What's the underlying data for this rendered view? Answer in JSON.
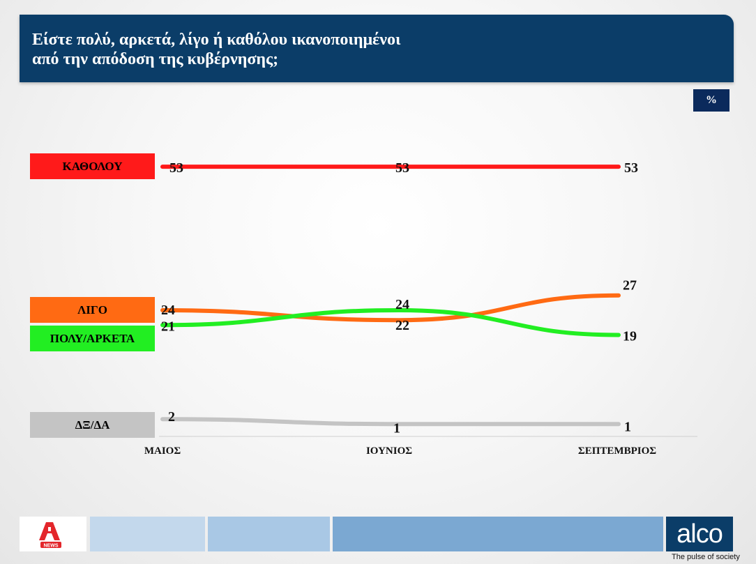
{
  "header": {
    "line1": "Είστε πολύ, αρκετά, λίγο ή καθόλου ικανοποιημένοι",
    "line2": "από την απόδοση της κυβέρνησης;"
  },
  "unit_label": "%",
  "footer": {
    "alpha_logo_text": "NEWS",
    "brand": "alco",
    "tagline": "The pulse of society"
  },
  "colors": {
    "header_bg": "#0b3d68",
    "katholou": "#ff1a1a",
    "ligo": "#ff6a13",
    "poly_arketa": "#22ee22",
    "dxda": "#c4c4c4"
  },
  "chart_data": {
    "type": "line",
    "categories": [
      "ΜΑΙΟΣ",
      "ΙΟΥΝΙΟΣ",
      "ΣΕΠΤΕΜΒΡΙΟΣ"
    ],
    "series": [
      {
        "name": "ΚΑΘΟΛΟΥ",
        "values": [
          53,
          53,
          53
        ],
        "color": "#ff1a1a"
      },
      {
        "name": "ΛΙΓΟ",
        "values": [
          24,
          22,
          27
        ],
        "color": "#ff6a13"
      },
      {
        "name": "ΠΟΛΥ/ΑΡΚΕΤΑ",
        "values": [
          21,
          24,
          19
        ],
        "color": "#22ee22"
      },
      {
        "name": "ΔΞ/ΔΑ",
        "values": [
          2,
          1,
          1
        ],
        "color": "#c4c4c4"
      }
    ],
    "legend_placement": "left",
    "grid": false
  }
}
